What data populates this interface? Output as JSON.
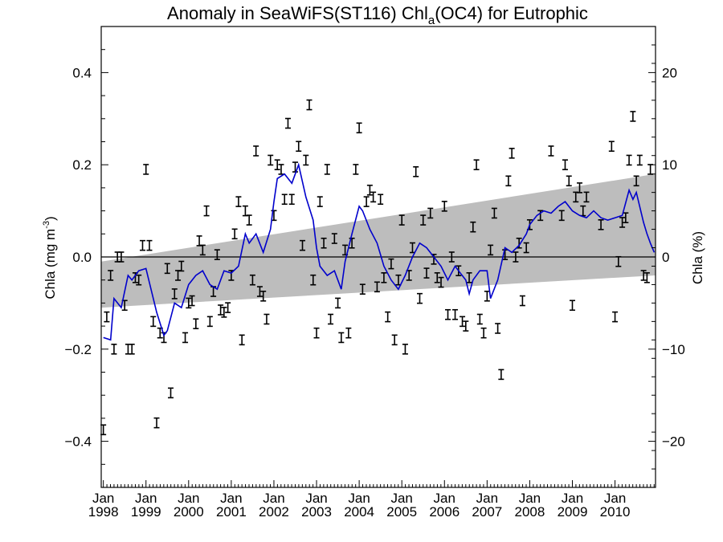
{
  "chart_data": {
    "type": "line",
    "title": "Anomaly in SeaWiFS(ST116) Chl",
    "title_subscript": "a",
    "title_suffix": "(OC4) for Eutrophic",
    "ylabel_left": "Chla (mg m",
    "ylabel_left_sup": "-3",
    "ylabel_left_close": ")",
    "ylabel_right": "Chla (%)",
    "xlim": [
      1997.95,
      2010.95
    ],
    "ylim_left": [
      -0.5,
      0.5
    ],
    "ylim_right": [
      -25,
      25
    ],
    "yticks_left": [
      "−0.4",
      "−0.2",
      "0.0",
      "0.2",
      "0.4"
    ],
    "yticks_right": [
      "−20",
      "−10",
      "0",
      "10",
      "20"
    ],
    "xtick_labels": [
      {
        "month": "Jan",
        "year": "1998"
      },
      {
        "month": "Jan",
        "year": "1999"
      },
      {
        "month": "Jan",
        "year": "2000"
      },
      {
        "month": "Jan",
        "year": "2001"
      },
      {
        "month": "Jan",
        "year": "2002"
      },
      {
        "month": "Jan",
        "year": "2003"
      },
      {
        "month": "Jan",
        "year": "2004"
      },
      {
        "month": "Jan",
        "year": "2005"
      },
      {
        "month": "Jan",
        "year": "2006"
      },
      {
        "month": "Jan",
        "year": "2007"
      },
      {
        "month": "Jan",
        "year": "2008"
      },
      {
        "month": "Jan",
        "year": "2009"
      },
      {
        "month": "Jan",
        "year": "2010"
      }
    ],
    "grid": false,
    "trend_band": {
      "color": "#bdbdbd",
      "x": [
        1997.95,
        2010.95
      ],
      "lower": [
        -0.11,
        -0.04
      ],
      "upper": [
        -0.01,
        0.18
      ]
    },
    "zero_line": true,
    "monthly_anomaly_color": "#000000",
    "smoothed_color": "#0000cc",
    "monthly_anomaly": [
      [
        1998.0,
        -0.375
      ],
      [
        1998.08,
        -0.13
      ],
      [
        1998.17,
        -0.04
      ],
      [
        1998.25,
        -0.2
      ],
      [
        1998.33,
        0.0
      ],
      [
        1998.42,
        0.0
      ],
      [
        1998.5,
        -0.105
      ],
      [
        1998.58,
        -0.2
      ],
      [
        1998.67,
        -0.2
      ],
      [
        1998.75,
        -0.045
      ],
      [
        1998.83,
        -0.05
      ],
      [
        1998.92,
        0.025
      ],
      [
        1999.0,
        0.19
      ],
      [
        1999.08,
        0.025
      ],
      [
        1999.17,
        -0.14
      ],
      [
        1999.25,
        -0.36
      ],
      [
        1999.33,
        -0.165
      ],
      [
        1999.42,
        -0.175
      ],
      [
        1999.5,
        -0.025
      ],
      [
        1999.58,
        -0.295
      ],
      [
        1999.67,
        -0.08
      ],
      [
        1999.75,
        -0.04
      ],
      [
        1999.83,
        -0.02
      ],
      [
        1999.92,
        -0.175
      ],
      [
        2000.0,
        -0.1
      ],
      [
        2000.08,
        -0.095
      ],
      [
        2000.17,
        -0.145
      ],
      [
        2000.25,
        0.035
      ],
      [
        2000.33,
        0.015
      ],
      [
        2000.42,
        0.1
      ],
      [
        2000.5,
        -0.14
      ],
      [
        2000.58,
        -0.075
      ],
      [
        2000.67,
        0.005
      ],
      [
        2000.75,
        -0.115
      ],
      [
        2000.83,
        -0.12
      ],
      [
        2000.92,
        -0.11
      ],
      [
        2001.0,
        -0.04
      ],
      [
        2001.08,
        0.05
      ],
      [
        2001.17,
        0.12
      ],
      [
        2001.25,
        -0.18
      ],
      [
        2001.33,
        0.1
      ],
      [
        2001.42,
        0.08
      ],
      [
        2001.5,
        -0.05
      ],
      [
        2001.58,
        0.23
      ],
      [
        2001.67,
        -0.075
      ],
      [
        2001.75,
        -0.085
      ],
      [
        2001.83,
        -0.135
      ],
      [
        2001.92,
        0.21
      ],
      [
        2002.0,
        0.09
      ],
      [
        2002.08,
        0.2
      ],
      [
        2002.17,
        0.19
      ],
      [
        2002.25,
        0.125
      ],
      [
        2002.33,
        0.29
      ],
      [
        2002.42,
        0.125
      ],
      [
        2002.5,
        0.195
      ],
      [
        2002.58,
        0.24
      ],
      [
        2002.67,
        0.025
      ],
      [
        2002.75,
        0.21
      ],
      [
        2002.83,
        0.33
      ],
      [
        2002.92,
        -0.05
      ],
      [
        2003.0,
        -0.165
      ],
      [
        2003.08,
        0.12
      ],
      [
        2003.17,
        0.03
      ],
      [
        2003.25,
        0.19
      ],
      [
        2003.33,
        -0.135
      ],
      [
        2003.42,
        0.04
      ],
      [
        2003.5,
        -0.1
      ],
      [
        2003.58,
        -0.175
      ],
      [
        2003.67,
        0.015
      ],
      [
        2003.75,
        -0.165
      ],
      [
        2003.83,
        0.03
      ],
      [
        2003.92,
        0.19
      ],
      [
        2004.0,
        0.28
      ],
      [
        2004.08,
        -0.07
      ],
      [
        2004.17,
        0.12
      ],
      [
        2004.25,
        0.145
      ],
      [
        2004.33,
        0.13
      ],
      [
        2004.42,
        -0.065
      ],
      [
        2004.5,
        0.125
      ],
      [
        2004.58,
        -0.045
      ],
      [
        2004.67,
        -0.13
      ],
      [
        2004.75,
        -0.015
      ],
      [
        2004.83,
        -0.18
      ],
      [
        2004.92,
        -0.05
      ],
      [
        2005.0,
        0.08
      ],
      [
        2005.08,
        -0.2
      ],
      [
        2005.17,
        -0.04
      ],
      [
        2005.25,
        0.02
      ],
      [
        2005.33,
        0.185
      ],
      [
        2005.42,
        -0.09
      ],
      [
        2005.5,
        0.08
      ],
      [
        2005.58,
        -0.035
      ],
      [
        2005.67,
        0.095
      ],
      [
        2005.75,
        -0.005
      ],
      [
        2005.83,
        -0.045
      ],
      [
        2005.92,
        -0.055
      ],
      [
        2006.0,
        0.11
      ],
      [
        2006.08,
        -0.125
      ],
      [
        2006.17,
        0.0
      ],
      [
        2006.25,
        -0.125
      ],
      [
        2006.33,
        -0.03
      ],
      [
        2006.42,
        -0.14
      ],
      [
        2006.5,
        -0.15
      ],
      [
        2006.58,
        -0.045
      ],
      [
        2006.67,
        0.065
      ],
      [
        2006.75,
        0.2
      ],
      [
        2006.83,
        -0.135
      ],
      [
        2006.92,
        -0.165
      ],
      [
        2007.0,
        -0.085
      ],
      [
        2007.08,
        0.015
      ],
      [
        2007.17,
        0.095
      ],
      [
        2007.25,
        -0.155
      ],
      [
        2007.33,
        -0.255
      ],
      [
        2007.42,
        0.005
      ],
      [
        2007.5,
        0.165
      ],
      [
        2007.58,
        0.225
      ],
      [
        2007.67,
        0.0
      ],
      [
        2007.75,
        0.03
      ],
      [
        2007.83,
        -0.095
      ],
      [
        2007.92,
        0.02
      ],
      [
        2008.0,
        0.07
      ],
      [
        2008.25,
        0.09
      ],
      [
        2008.5,
        0.23
      ],
      [
        2008.75,
        0.09
      ],
      [
        2008.83,
        0.2
      ],
      [
        2008.92,
        0.165
      ],
      [
        2009.0,
        -0.105
      ],
      [
        2009.08,
        0.13
      ],
      [
        2009.17,
        0.15
      ],
      [
        2009.25,
        0.1
      ],
      [
        2009.33,
        0.13
      ],
      [
        2009.67,
        0.07
      ],
      [
        2009.92,
        0.24
      ],
      [
        2010.0,
        -0.13
      ],
      [
        2010.08,
        -0.01
      ],
      [
        2010.17,
        0.075
      ],
      [
        2010.25,
        0.085
      ],
      [
        2010.33,
        0.21
      ],
      [
        2010.42,
        0.305
      ],
      [
        2010.5,
        0.165
      ],
      [
        2010.58,
        0.21
      ],
      [
        2010.67,
        -0.04
      ],
      [
        2010.75,
        -0.045
      ],
      [
        2010.83,
        0.19
      ]
    ],
    "smoothed_anomaly": [
      [
        1998.0,
        -0.175
      ],
      [
        1998.17,
        -0.18
      ],
      [
        1998.25,
        -0.09
      ],
      [
        1998.42,
        -0.11
      ],
      [
        1998.58,
        -0.04
      ],
      [
        1998.67,
        -0.05
      ],
      [
        1998.83,
        -0.03
      ],
      [
        1999.0,
        -0.025
      ],
      [
        1999.25,
        -0.12
      ],
      [
        1999.42,
        -0.17
      ],
      [
        1999.5,
        -0.16
      ],
      [
        1999.67,
        -0.1
      ],
      [
        1999.83,
        -0.11
      ],
      [
        2000.0,
        -0.06
      ],
      [
        2000.17,
        -0.04
      ],
      [
        2000.33,
        -0.03
      ],
      [
        2000.5,
        -0.06
      ],
      [
        2000.67,
        -0.07
      ],
      [
        2000.83,
        -0.03
      ],
      [
        2001.0,
        -0.035
      ],
      [
        2001.17,
        -0.02
      ],
      [
        2001.33,
        0.05
      ],
      [
        2001.42,
        0.03
      ],
      [
        2001.58,
        0.05
      ],
      [
        2001.75,
        0.01
      ],
      [
        2001.92,
        0.06
      ],
      [
        2002.0,
        0.12
      ],
      [
        2002.08,
        0.17
      ],
      [
        2002.25,
        0.18
      ],
      [
        2002.42,
        0.16
      ],
      [
        2002.58,
        0.2
      ],
      [
        2002.75,
        0.13
      ],
      [
        2002.92,
        0.08
      ],
      [
        2003.0,
        0.02
      ],
      [
        2003.08,
        -0.02
      ],
      [
        2003.25,
        -0.04
      ],
      [
        2003.42,
        -0.03
      ],
      [
        2003.58,
        -0.07
      ],
      [
        2003.67,
        -0.01
      ],
      [
        2003.83,
        0.05
      ],
      [
        2004.0,
        0.11
      ],
      [
        2004.08,
        0.1
      ],
      [
        2004.25,
        0.06
      ],
      [
        2004.42,
        0.03
      ],
      [
        2004.58,
        -0.02
      ],
      [
        2004.75,
        -0.05
      ],
      [
        2004.92,
        -0.07
      ],
      [
        2005.08,
        -0.04
      ],
      [
        2005.25,
        0.0
      ],
      [
        2005.42,
        0.03
      ],
      [
        2005.58,
        0.02
      ],
      [
        2005.75,
        0.0
      ],
      [
        2005.92,
        -0.02
      ],
      [
        2006.08,
        -0.05
      ],
      [
        2006.25,
        -0.02
      ],
      [
        2006.33,
        -0.03
      ],
      [
        2006.5,
        -0.05
      ],
      [
        2006.58,
        -0.08
      ],
      [
        2006.67,
        -0.05
      ],
      [
        2006.83,
        -0.03
      ],
      [
        2007.0,
        -0.03
      ],
      [
        2007.08,
        -0.09
      ],
      [
        2007.25,
        -0.05
      ],
      [
        2007.42,
        0.02
      ],
      [
        2007.58,
        0.01
      ],
      [
        2007.75,
        0.025
      ],
      [
        2007.92,
        0.05
      ],
      [
        2008.0,
        0.07
      ],
      [
        2008.17,
        0.09
      ],
      [
        2008.33,
        0.1
      ],
      [
        2008.5,
        0.095
      ],
      [
        2008.67,
        0.11
      ],
      [
        2008.83,
        0.12
      ],
      [
        2009.0,
        0.1
      ],
      [
        2009.17,
        0.09
      ],
      [
        2009.33,
        0.085
      ],
      [
        2009.5,
        0.1
      ],
      [
        2009.67,
        0.085
      ],
      [
        2009.83,
        0.08
      ],
      [
        2010.0,
        0.085
      ],
      [
        2010.17,
        0.09
      ],
      [
        2010.33,
        0.145
      ],
      [
        2010.42,
        0.125
      ],
      [
        2010.5,
        0.14
      ],
      [
        2010.67,
        0.075
      ],
      [
        2010.75,
        0.05
      ],
      [
        2010.83,
        0.03
      ],
      [
        2010.92,
        0.01
      ]
    ]
  }
}
